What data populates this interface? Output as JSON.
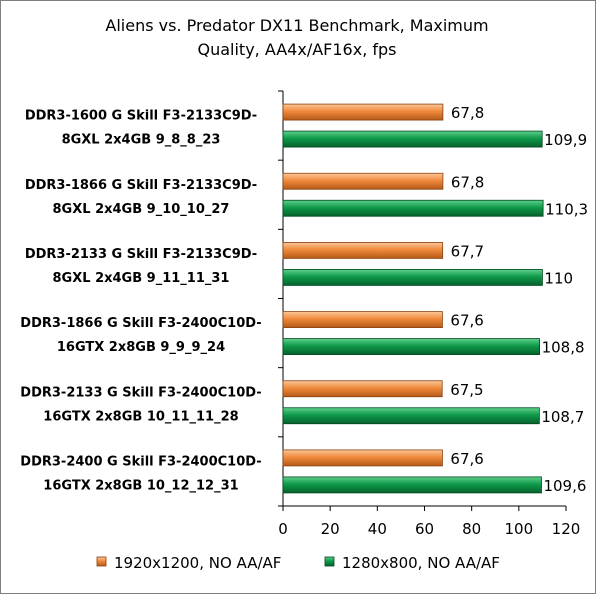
{
  "chart_data": {
    "type": "bar",
    "orientation": "horizontal",
    "title_lines": [
      "Aliens vs. Predator DX11 Benchmark, Maximum",
      "Quality, AA4x/AF16x, fps"
    ],
    "categories": [
      [
        "DDR3-1600 G Skill F3-2133C9D-",
        "8GXL 2x4GB 9_8_8_23"
      ],
      [
        "DDR3-1866 G Skill F3-2133C9D-",
        "8GXL 2x4GB 9_10_10_27"
      ],
      [
        "DDR3-2133 G Skill F3-2133C9D-",
        "8GXL 2x4GB 9_11_11_31"
      ],
      [
        "DDR3-1866 G Skill F3-2400C10D-",
        "16GTX 2x8GB 9_9_9_24"
      ],
      [
        "DDR3-2133 G Skill F3-2400C10D-",
        "16GTX 2x8GB 10_11_11_28"
      ],
      [
        "DDR3-2400 G Skill F3-2400C10D-",
        "16GTX 2x8GB 10_12_12_31"
      ]
    ],
    "series": [
      {
        "name": "1920x1200, NO AA/AF",
        "values": [
          67.8,
          67.8,
          67.7,
          67.6,
          67.5,
          67.6
        ],
        "labels": [
          "67,8",
          "67,8",
          "67,7",
          "67,6",
          "67,5",
          "67,6"
        ],
        "color": "#f08a3c"
      },
      {
        "name": "1280x800, NO AA/AF",
        "values": [
          109.9,
          110.3,
          110,
          108.8,
          108.7,
          109.6
        ],
        "labels": [
          "109,9",
          "110,3",
          "110",
          "108,8",
          "108,7",
          "109,6"
        ],
        "color": "#0f9a4a"
      }
    ],
    "xlim": [
      0,
      120
    ],
    "x_ticks": [
      0,
      20,
      40,
      60,
      80,
      100,
      120
    ],
    "grid": false,
    "legend_position": "bottom"
  }
}
